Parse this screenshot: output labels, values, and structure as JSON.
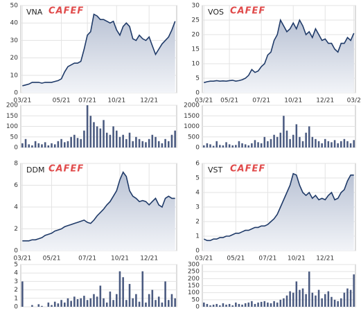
{
  "chart_data": [
    {
      "type": "area",
      "title": "VNA",
      "watermark": "CAFEF",
      "color": "#1f3a68",
      "categories": [
        "03/21",
        null,
        null,
        null,
        null,
        null,
        null,
        null,
        null,
        null,
        null,
        null,
        "05/21",
        null,
        null,
        null,
        null,
        null,
        null,
        null,
        "07/21",
        null,
        null,
        null,
        null,
        null,
        null,
        null,
        null,
        "10/21",
        null,
        null,
        null,
        null,
        null,
        null,
        null,
        null,
        null,
        "12/21",
        null,
        null,
        null,
        null,
        null,
        null,
        null,
        null
      ],
      "values": [
        4,
        4.5,
        5,
        6,
        6,
        6,
        5.5,
        6,
        6,
        6,
        6.5,
        7,
        8,
        12,
        15,
        16,
        17,
        17,
        18,
        25,
        33,
        35,
        45,
        44,
        42,
        42,
        41,
        40,
        41,
        36,
        33,
        38,
        40,
        38,
        31,
        30,
        33,
        31,
        30,
        32,
        27,
        22,
        25,
        28,
        30,
        32,
        36,
        41
      ],
      "ylim": [
        0,
        50
      ],
      "yticks": [
        0,
        10,
        20,
        30,
        40,
        50
      ],
      "grid": true
    },
    {
      "type": "bar",
      "color": "#4a5a80",
      "values": [
        20,
        40,
        15,
        10,
        30,
        20,
        15,
        25,
        10,
        20,
        15,
        30,
        40,
        25,
        30,
        50,
        60,
        45,
        40,
        80,
        200,
        150,
        120,
        100,
        90,
        130,
        70,
        60,
        100,
        80,
        50,
        60,
        40,
        70,
        30,
        50,
        40,
        30,
        25,
        40,
        60,
        50,
        30,
        20,
        40,
        30,
        60,
        80
      ],
      "ylim": [
        0,
        200
      ],
      "yticks": [
        0,
        50,
        100,
        150,
        200
      ],
      "grid": true
    },
    {
      "type": "area",
      "title": "VOS",
      "watermark": "CAFEF",
      "color": "#1f3a68",
      "categories": [
        "03/21",
        null,
        null,
        null,
        null,
        null,
        null,
        null,
        "05/21",
        null,
        null,
        null,
        null,
        null,
        null,
        null,
        null,
        null,
        "07/21",
        null,
        null,
        null,
        null,
        null,
        null,
        null,
        null,
        null,
        "10/21",
        null,
        null,
        null,
        null,
        null,
        null,
        null,
        null,
        null,
        "12/21",
        null,
        null,
        null,
        null,
        null,
        null,
        null,
        null,
        "03/2"
      ],
      "values": [
        3.5,
        3.8,
        4,
        4,
        4.2,
        4,
        4.1,
        4,
        4.2,
        4.3,
        4,
        4.2,
        4.5,
        5,
        6,
        8,
        7,
        7.5,
        9,
        10,
        13,
        14,
        18,
        20,
        25,
        23,
        21,
        22,
        24,
        22,
        25,
        23,
        20,
        21,
        19,
        22,
        20,
        18,
        18.5,
        17,
        17,
        15,
        14,
        17,
        17,
        19,
        18,
        20.5
      ],
      "ylim": [
        0,
        30
      ],
      "yticks": [
        0,
        5,
        10,
        15,
        20,
        25,
        30
      ],
      "grid": true
    },
    {
      "type": "bar",
      "color": "#4a5a80",
      "values": [
        100,
        200,
        150,
        80,
        300,
        120,
        100,
        250,
        150,
        100,
        120,
        300,
        200,
        150,
        100,
        200,
        350,
        250,
        200,
        500,
        300,
        400,
        600,
        500,
        700,
        1500,
        800,
        400,
        600,
        1100,
        500,
        300,
        700,
        1000,
        500,
        400,
        300,
        200,
        400,
        300,
        250,
        350,
        200,
        300,
        400,
        300,
        200,
        350
      ],
      "ylim": [
        0,
        2000
      ],
      "yticks": [
        0,
        500,
        1000,
        1500,
        2000
      ],
      "grid": true
    },
    {
      "type": "area",
      "title": "DDM",
      "watermark": "CAFEF",
      "color": "#1f3a68",
      "categories": [
        "03/21",
        null,
        null,
        null,
        null,
        null,
        null,
        null,
        null,
        "05/21",
        null,
        null,
        null,
        null,
        null,
        null,
        null,
        null,
        null,
        null,
        "07/21",
        null,
        null,
        null,
        null,
        null,
        null,
        null,
        null,
        null,
        "10/21",
        null,
        null,
        null,
        null,
        null,
        null,
        null,
        null,
        "12/21",
        null,
        null,
        null,
        null,
        null,
        null,
        null,
        null
      ],
      "values": [
        0.9,
        0.9,
        0.9,
        1,
        1,
        1.1,
        1.2,
        1.4,
        1.5,
        1.6,
        1.8,
        1.9,
        2,
        2.2,
        2.3,
        2.4,
        2.5,
        2.6,
        2.7,
        2.8,
        2.6,
        2.5,
        2.8,
        3.2,
        3.5,
        3.8,
        4.2,
        4.5,
        5,
        5.5,
        6.5,
        7.2,
        6.8,
        5.5,
        5,
        4.8,
        4.5,
        4.6,
        4.5,
        4.2,
        4.5,
        4.8,
        4.2,
        4,
        4.8,
        5,
        4.8,
        4.8
      ],
      "ylim": [
        0,
        8
      ],
      "yticks": [
        0,
        2,
        4,
        6,
        8
      ],
      "grid": true
    },
    {
      "type": "bar",
      "color": "#4a5a80",
      "values": [
        3,
        0,
        0,
        0.2,
        0,
        0.3,
        0.1,
        0,
        0.5,
        0.2,
        0.6,
        0.4,
        0.8,
        0.5,
        1,
        0.7,
        1.2,
        0.9,
        1,
        1.3,
        0.8,
        1,
        1.5,
        1.2,
        2.5,
        1,
        0.5,
        1.8,
        0.8,
        1.5,
        4.2,
        3.5,
        0.8,
        2.7,
        1,
        1.5,
        0.6,
        4.2,
        0.5,
        1.5,
        2,
        0.8,
        1.2,
        0.5,
        3,
        0.8,
        1.5,
        1
      ],
      "ylim": [
        0,
        5
      ],
      "yticks": [
        0,
        1,
        2,
        3,
        4,
        5
      ],
      "grid": true
    },
    {
      "type": "area",
      "title": "VST",
      "watermark": "CAFEF",
      "color": "#1f3a68",
      "categories": [
        "03/21",
        null,
        null,
        null,
        null,
        null,
        null,
        null,
        null,
        null,
        "05/21",
        null,
        null,
        null,
        null,
        null,
        null,
        null,
        null,
        null,
        "07/21",
        null,
        null,
        null,
        null,
        null,
        null,
        null,
        null,
        "10/21",
        null,
        null,
        null,
        null,
        null,
        null,
        null,
        null,
        "12/21",
        null,
        null,
        null,
        null,
        null,
        null,
        null,
        null,
        null
      ],
      "values": [
        0.8,
        0.7,
        0.7,
        0.8,
        0.8,
        0.9,
        0.9,
        1,
        1,
        1.1,
        1.2,
        1.2,
        1.3,
        1.4,
        1.4,
        1.5,
        1.6,
        1.6,
        1.7,
        1.7,
        1.8,
        2,
        2.2,
        2.5,
        3,
        3.5,
        4,
        4.5,
        5.3,
        5.2,
        4.5,
        4,
        3.8,
        4,
        3.6,
        3.8,
        3.5,
        3.6,
        3.5,
        3.8,
        4,
        3.5,
        3.6,
        4,
        4.2,
        4.8,
        5.2,
        5.2
      ],
      "ylim": [
        0,
        6
      ],
      "yticks": [
        0,
        1,
        2,
        3,
        4,
        5,
        6
      ],
      "grid": true
    },
    {
      "type": "bar",
      "color": "#4a5a80",
      "values": [
        30,
        20,
        10,
        15,
        20,
        10,
        25,
        15,
        20,
        10,
        30,
        20,
        15,
        25,
        30,
        40,
        20,
        30,
        35,
        40,
        30,
        25,
        40,
        30,
        50,
        60,
        80,
        110,
        100,
        180,
        120,
        130,
        90,
        250,
        100,
        80,
        120,
        60,
        90,
        110,
        70,
        50,
        40,
        60,
        100,
        130,
        120,
        230
      ],
      "ylim": [
        0,
        300
      ],
      "yticks": [
        0,
        50,
        100,
        150,
        200,
        250,
        300
      ],
      "grid": true
    }
  ]
}
